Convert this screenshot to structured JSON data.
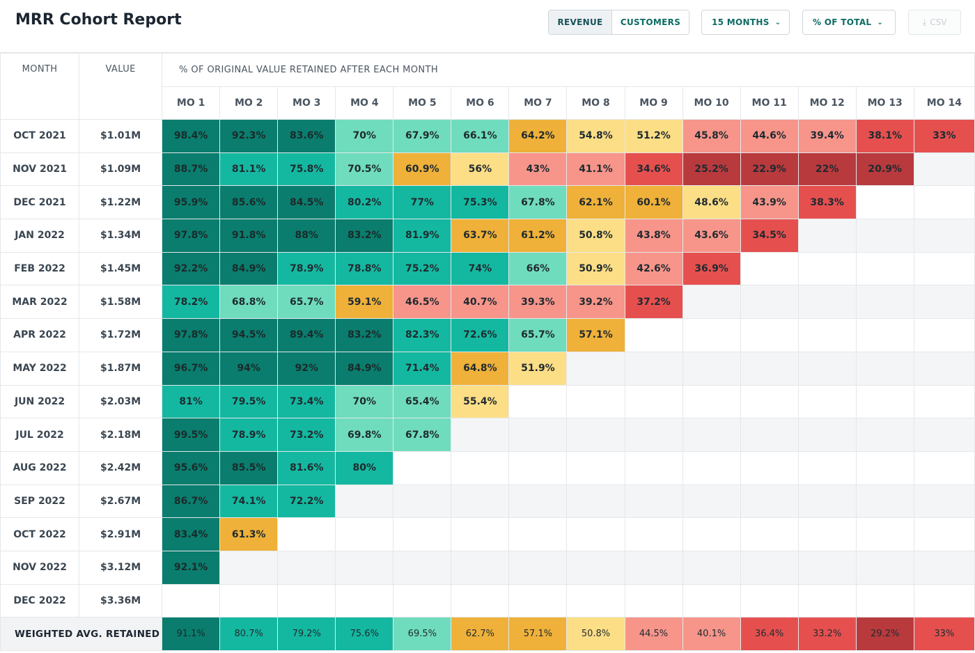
{
  "app": {
    "title": "MRR Cohort Report"
  },
  "toolbar": {
    "revenue_label": "REVENUE",
    "customers_label": "CUSTOMERS",
    "months_label": "15 MONTHS",
    "percent_label": "% OF TOTAL",
    "csv_label": "CSV"
  },
  "table": {
    "col_month": "MONTH",
    "col_value": "VALUE",
    "col_retained": "% OF ORIGINAL VALUE RETAINED AFTER EACH MONTH",
    "months": [
      "MO 1",
      "MO 2",
      "MO 3",
      "MO 4",
      "MO 5",
      "MO 6",
      "MO 7",
      "MO 8",
      "MO 9",
      "MO 10",
      "MO 11",
      "MO 12",
      "MO 13",
      "MO 14"
    ],
    "rows": [
      {
        "month": "OCT 2021",
        "value": "$1.01M",
        "cells": [
          "98.4%",
          "92.3%",
          "83.6%",
          "70%",
          "67.9%",
          "66.1%",
          "64.2%",
          "54.8%",
          "51.2%",
          "45.8%",
          "44.6%",
          "39.4%",
          "38.1%",
          "33%"
        ]
      },
      {
        "month": "NOV 2021",
        "value": "$1.09M",
        "cells": [
          "88.7%",
          "81.1%",
          "75.8%",
          "70.5%",
          "60.9%",
          "56%",
          "43%",
          "41.1%",
          "34.6%",
          "25.2%",
          "22.9%",
          "22%",
          "20.9%"
        ]
      },
      {
        "month": "DEC 2021",
        "value": "$1.22M",
        "cells": [
          "95.9%",
          "85.6%",
          "84.5%",
          "80.2%",
          "77%",
          "75.3%",
          "67.8%",
          "62.1%",
          "60.1%",
          "48.6%",
          "43.9%",
          "38.3%"
        ]
      },
      {
        "month": "JAN 2022",
        "value": "$1.34M",
        "cells": [
          "97.8%",
          "91.8%",
          "88%",
          "83.2%",
          "81.9%",
          "63.7%",
          "61.2%",
          "50.8%",
          "43.8%",
          "43.6%",
          "34.5%"
        ]
      },
      {
        "month": "FEB 2022",
        "value": "$1.45M",
        "cells": [
          "92.2%",
          "84.9%",
          "78.9%",
          "78.8%",
          "75.2%",
          "74%",
          "66%",
          "50.9%",
          "42.6%",
          "36.9%"
        ]
      },
      {
        "month": "MAR 2022",
        "value": "$1.58M",
        "cells": [
          "78.2%",
          "68.8%",
          "65.7%",
          "59.1%",
          "46.5%",
          "40.7%",
          "39.3%",
          "39.2%",
          "37.2%"
        ]
      },
      {
        "month": "APR 2022",
        "value": "$1.72M",
        "cells": [
          "97.8%",
          "94.5%",
          "89.4%",
          "83.2%",
          "82.3%",
          "72.6%",
          "65.7%",
          "57.1%"
        ]
      },
      {
        "month": "MAY 2022",
        "value": "$1.87M",
        "cells": [
          "96.7%",
          "94%",
          "92%",
          "84.9%",
          "71.4%",
          "64.8%",
          "51.9%"
        ]
      },
      {
        "month": "JUN 2022",
        "value": "$2.03M",
        "cells": [
          "81%",
          "79.5%",
          "73.4%",
          "70%",
          "65.4%",
          "55.4%"
        ]
      },
      {
        "month": "JUL 2022",
        "value": "$2.18M",
        "cells": [
          "99.5%",
          "78.9%",
          "73.2%",
          "69.8%",
          "67.8%"
        ]
      },
      {
        "month": "AUG 2022",
        "value": "$2.42M",
        "cells": [
          "95.6%",
          "85.5%",
          "81.6%",
          "80%"
        ]
      },
      {
        "month": "SEP 2022",
        "value": "$2.67M",
        "cells": [
          "86.7%",
          "74.1%",
          "72.2%"
        ]
      },
      {
        "month": "OCT 2022",
        "value": "$2.91M",
        "cells": [
          "83.4%",
          "61.3%"
        ]
      },
      {
        "month": "NOV 2022",
        "value": "$3.12M",
        "cells": [
          "92.1%"
        ]
      },
      {
        "month": "DEC 2022",
        "value": "$3.36M",
        "cells": []
      }
    ],
    "avg_label": "WEIGHTED AVG. RETAINED",
    "avg_cells": [
      "91.1%",
      "80.7%",
      "79.2%",
      "75.6%",
      "69.5%",
      "62.7%",
      "57.1%",
      "50.8%",
      "44.5%",
      "40.1%",
      "36.4%",
      "33.2%",
      "29.2%",
      "33%"
    ]
  },
  "colors": {
    "dark_teal": "#0a7d6e",
    "teal": "#14b8a0",
    "light_teal": "#6fdcbd",
    "orange": "#efb139",
    "yellow": "#fcde86",
    "salmon": "#f7958a",
    "red": "#e5504f",
    "dark_red": "#b83a3d",
    "empty_shade": "#f4f5f6"
  }
}
